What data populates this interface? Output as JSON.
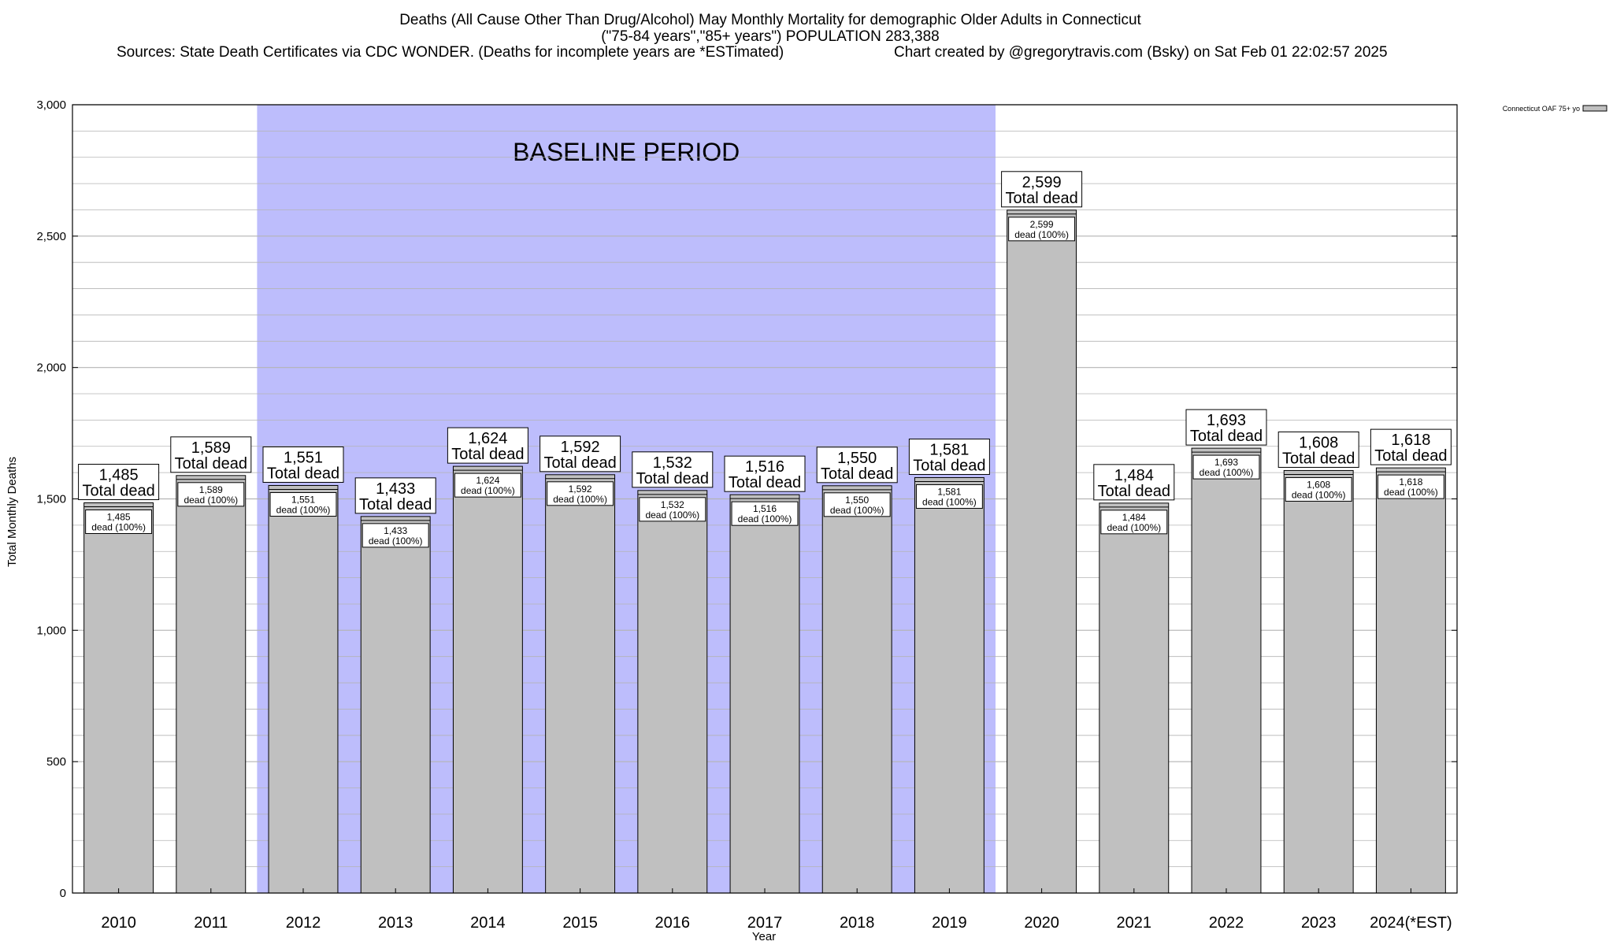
{
  "chart_data": {
    "type": "bar",
    "title_lines": [
      "Deaths (All Cause Other Than Drug/Alcohol) May Monthly Mortality for demographic Older Adults in Connecticut",
      "(\"75-84 years\",\"85+ years\") POPULATION 283,388"
    ],
    "source_text": "Sources: State Death Certificates via CDC WONDER. (Deaths for incomplete years are *ESTimated)",
    "credit_text": "Chart created by @gregorytravis.com (Bsky) on Sat Feb 01 22:02:57 2025",
    "xlabel": "Year",
    "ylabel": "Total Monthly Deaths",
    "ylim": [
      0,
      3000
    ],
    "yticks": [
      0,
      500,
      1000,
      1500,
      2000,
      2500,
      3000
    ],
    "ytick_labels": [
      "0",
      "500",
      "1,000",
      "1,500",
      "2,000",
      "2,500",
      "3,000"
    ],
    "minor_grid_step": 100,
    "grid": true,
    "categories": [
      "2010",
      "2011",
      "2012",
      "2013",
      "2014",
      "2015",
      "2016",
      "2017",
      "2018",
      "2019",
      "2020",
      "2021",
      "2022",
      "2023",
      "2024(*EST)"
    ],
    "series": [
      {
        "name": "Connecticut OAF 75+ yo",
        "values": [
          1485,
          1589,
          1551,
          1433,
          1624,
          1592,
          1532,
          1516,
          1550,
          1581,
          2599,
          1484,
          1693,
          1608,
          1618
        ]
      }
    ],
    "top_labels": [
      "1,485",
      "1,589",
      "1,551",
      "1,433",
      "1,624",
      "1,592",
      "1,532",
      "1,516",
      "1,550",
      "1,581",
      "2,599",
      "1,484",
      "1,693",
      "1,608",
      "1,618"
    ],
    "top_label_suffix": "Total dead",
    "inner_label_suffix": "dead (100%)",
    "baseline": {
      "label": "BASELINE PERIOD",
      "start": "2012",
      "end": "2019",
      "color": "#bdbdfc"
    },
    "legend": {
      "position": "top-right",
      "label": "Connecticut OAF 75+ yo"
    },
    "colors": {
      "bar_fill": "#c0c0c0",
      "bar_stroke": "#000000",
      "grid": "#b4b4b4"
    }
  }
}
